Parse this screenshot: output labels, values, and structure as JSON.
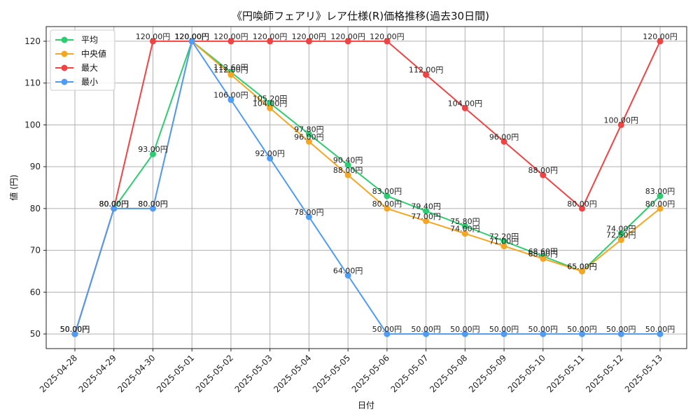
{
  "chart_data": {
    "type": "line",
    "title": "《円喚師フェアリ》レア仕様(R)価格推移(過去30日間)",
    "xlabel": "日付",
    "ylabel": "値 (円)",
    "ylim": [
      46.5,
      123.5
    ],
    "yticks": [
      50,
      60,
      70,
      80,
      90,
      100,
      110,
      120
    ],
    "grid": true,
    "legend_position": "top-left",
    "label_suffix": "円",
    "categories": [
      "2025-04-28",
      "2025-04-29",
      "2025-04-30",
      "2025-05-01",
      "2025-05-02",
      "2025-05-03",
      "2025-05-04",
      "2025-05-05",
      "2025-05-06",
      "2025-05-07",
      "2025-05-08",
      "2025-05-09",
      "2025-05-10",
      "2025-05-11",
      "2025-05-12",
      "2025-05-13"
    ],
    "series": [
      {
        "name": "平均",
        "color": "#2ecc71",
        "values": [
          50,
          80,
          93,
          120,
          112.6,
          105.2,
          97.8,
          90.4,
          83,
          79.4,
          75.8,
          72.2,
          68.6,
          65,
          74,
          83
        ]
      },
      {
        "name": "中央値",
        "color": "#f5a623",
        "values": [
          50,
          80,
          80,
          120,
          112,
          104,
          96,
          88,
          80,
          77,
          74,
          71,
          68,
          65,
          72.5,
          80
        ]
      },
      {
        "name": "最大",
        "color": "#ef4444",
        "values": [
          50,
          80,
          120,
          120,
          120,
          120,
          120,
          120,
          120,
          112,
          104,
          96,
          88,
          80,
          100,
          120
        ]
      },
      {
        "name": "最小",
        "color": "#4f9cf5",
        "values": [
          50,
          80,
          80,
          120,
          106,
          92,
          78,
          64,
          50,
          50,
          50,
          50,
          50,
          50,
          50,
          50
        ]
      }
    ]
  }
}
